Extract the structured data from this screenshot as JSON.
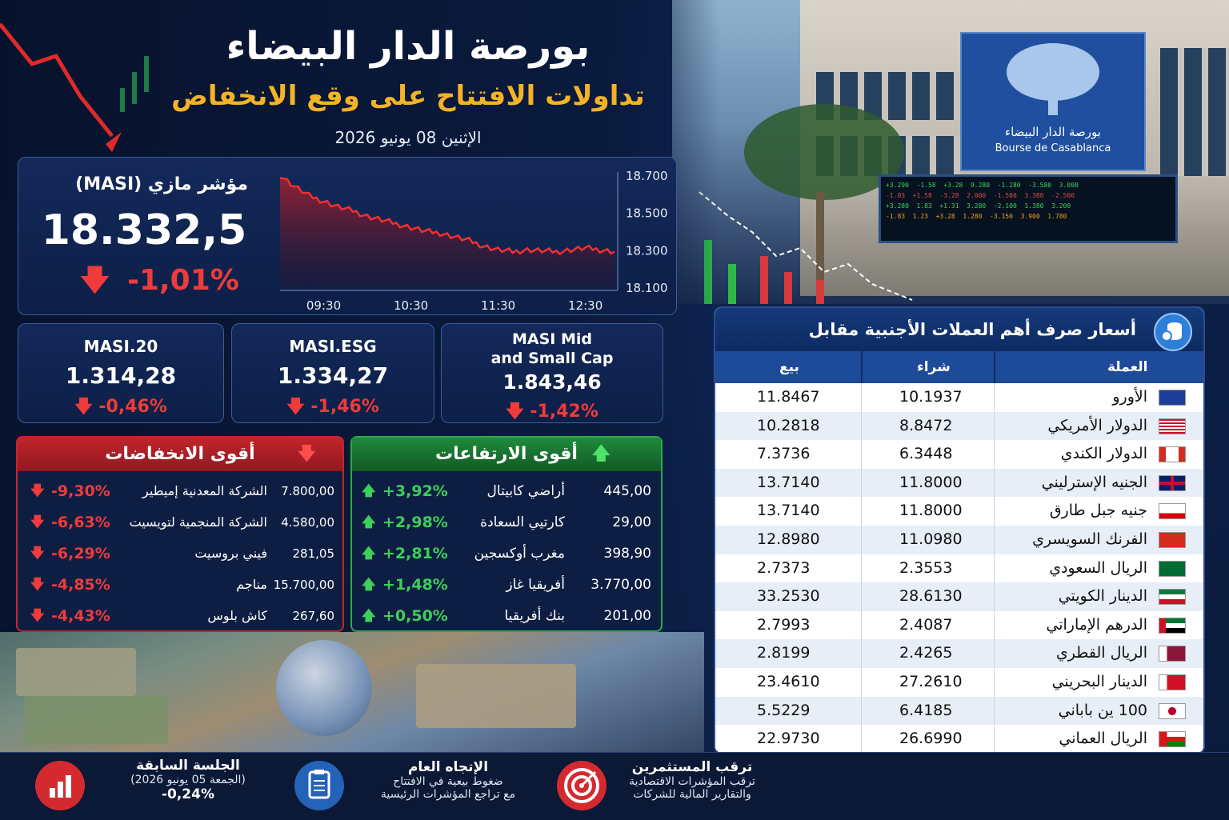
{
  "header": {
    "title": "بورصة الدار البيضاء",
    "subtitle": "تداولات الافتتاح على وقع الانخفاض",
    "date": "الإثنين 08 يونيو 2026"
  },
  "building": {
    "sign_ar": "بورصة الدار البيضاء",
    "sign_fr": "Bourse de Casablanca"
  },
  "masi": {
    "name": "مؤشر مازي (MASI)",
    "value": "18.332,5",
    "change": "-1,01%"
  },
  "chart_data": {
    "type": "area",
    "x": [
      "09:00",
      "09:10",
      "09:20",
      "09:30",
      "09:40",
      "09:50",
      "10:00",
      "10:10",
      "10:20",
      "10:30",
      "10:40",
      "10:50",
      "11:00",
      "11:10",
      "11:20",
      "11:30",
      "11:40",
      "11:50",
      "12:00",
      "12:10",
      "12:20",
      "12:30",
      "12:40",
      "12:50"
    ],
    "values": [
      18700,
      18640,
      18590,
      18560,
      18530,
      18510,
      18480,
      18460,
      18440,
      18420,
      18400,
      18390,
      18370,
      18350,
      18320,
      18300,
      18290,
      18300,
      18295,
      18290,
      18300,
      18310,
      18300,
      18290
    ],
    "x_ticks": [
      "09:30",
      "10:30",
      "11:30",
      "12:30"
    ],
    "y_ticks": [
      "18.700",
      "18.500",
      "18.300",
      "18.100"
    ],
    "ylim": [
      18100,
      18700
    ],
    "color": "#e83030"
  },
  "indices": [
    {
      "name": "MASI.20",
      "value": "1.314,28",
      "change": "-0,46%"
    },
    {
      "name": "MASI.ESG",
      "value": "1.334,27",
      "change": "-1,46%"
    },
    {
      "name_line1": "MASI Mid",
      "name_line2": "and Small Cap",
      "value": "1.843,46",
      "change": "-1,42%"
    }
  ],
  "losers": {
    "title": "أقوى الانخفاضات",
    "rows": [
      {
        "name": "الشركة المعدنية إميطير",
        "price": "7.800,00",
        "change": "-9,30%"
      },
      {
        "name": "الشركة المنجمية لتويسيت",
        "price": "4.580,00",
        "change": "-6,63%"
      },
      {
        "name": "فيني بروسيت",
        "price": "281,05",
        "change": "-6,29%"
      },
      {
        "name": "مناجم",
        "price": "15.700,00",
        "change": "-4,85%"
      },
      {
        "name": "كاش بلوس",
        "price": "267,60",
        "change": "-4,43%"
      }
    ]
  },
  "gainers": {
    "title": "أقوى الارتفاعات",
    "rows": [
      {
        "name": "أراضي كابيتال",
        "price": "445,00",
        "change": "+3,92%"
      },
      {
        "name": "كارتيي السعادة",
        "price": "29,00",
        "change": "+2,98%"
      },
      {
        "name": "مغرب أوكسجين",
        "price": "398,90",
        "change": "+2,81%"
      },
      {
        "name": "أفريقيا غاز",
        "price": "3.770,00",
        "change": "+1,48%"
      },
      {
        "name": "بنك أفريقيا",
        "price": "201,00",
        "change": "+0,50%"
      }
    ]
  },
  "fx": {
    "title": "أسعار صرف أهم العملات الأجنبية مقابل الدرهم",
    "col_currency": "العملة",
    "col_buy": "شراء",
    "col_sell": "بيع",
    "rows": [
      {
        "currency": "الأورو",
        "buy": "10.1937",
        "sell": "11.8467",
        "flag": "eu"
      },
      {
        "currency": "الدولار الأمريكي",
        "buy": "8.8472",
        "sell": "10.2818",
        "flag": "us"
      },
      {
        "currency": "الدولار الكندي",
        "buy": "6.3448",
        "sell": "7.3736",
        "flag": "ca"
      },
      {
        "currency": "الجنيه الإسترليني",
        "buy": "11.8000",
        "sell": "13.7140",
        "flag": "gb"
      },
      {
        "currency": "جنيه جبل طارق",
        "buy": "11.8000",
        "sell": "13.7140",
        "flag": "gi"
      },
      {
        "currency": "الفرنك السويسري",
        "buy": "11.0980",
        "sell": "12.8980",
        "flag": "ch"
      },
      {
        "currency": "الريال السعودي",
        "buy": "2.3553",
        "sell": "2.7373",
        "flag": "sa"
      },
      {
        "currency": "الدينار الكويتي",
        "buy": "28.6130",
        "sell": "33.2530",
        "flag": "kw"
      },
      {
        "currency": "الدرهم الإماراتي",
        "buy": "2.4087",
        "sell": "2.7993",
        "flag": "ae"
      },
      {
        "currency": "الريال القطري",
        "buy": "2.4265",
        "sell": "2.8199",
        "flag": "qa"
      },
      {
        "currency": "الدينار البحريني",
        "buy": "27.2610",
        "sell": "23.4610",
        "flag": "bh"
      },
      {
        "currency": "100 ين باباني",
        "buy": "6.4185",
        "sell": "5.5229",
        "flag": "jp"
      },
      {
        "currency": "الريال العماني",
        "buy": "26.6990",
        "sell": "22.9730",
        "flag": "om"
      }
    ]
  },
  "footer": {
    "investors_title": "ترقب المستثمرين",
    "investors_line1": "ترقب المؤشرات الاقتصادية",
    "investors_line2": "والتقارير المالية للشركات",
    "trend_title": "الإتجاه العام",
    "trend_line1": "ضغوط بيعية في الافتتاح",
    "trend_line2": "مع تراجع المؤشرات الرئيسية",
    "previous_title": "الجلسة السابقة",
    "previous_date": "(الجمعة 05 يونيو 2026)",
    "previous_change": "-0,24%"
  }
}
